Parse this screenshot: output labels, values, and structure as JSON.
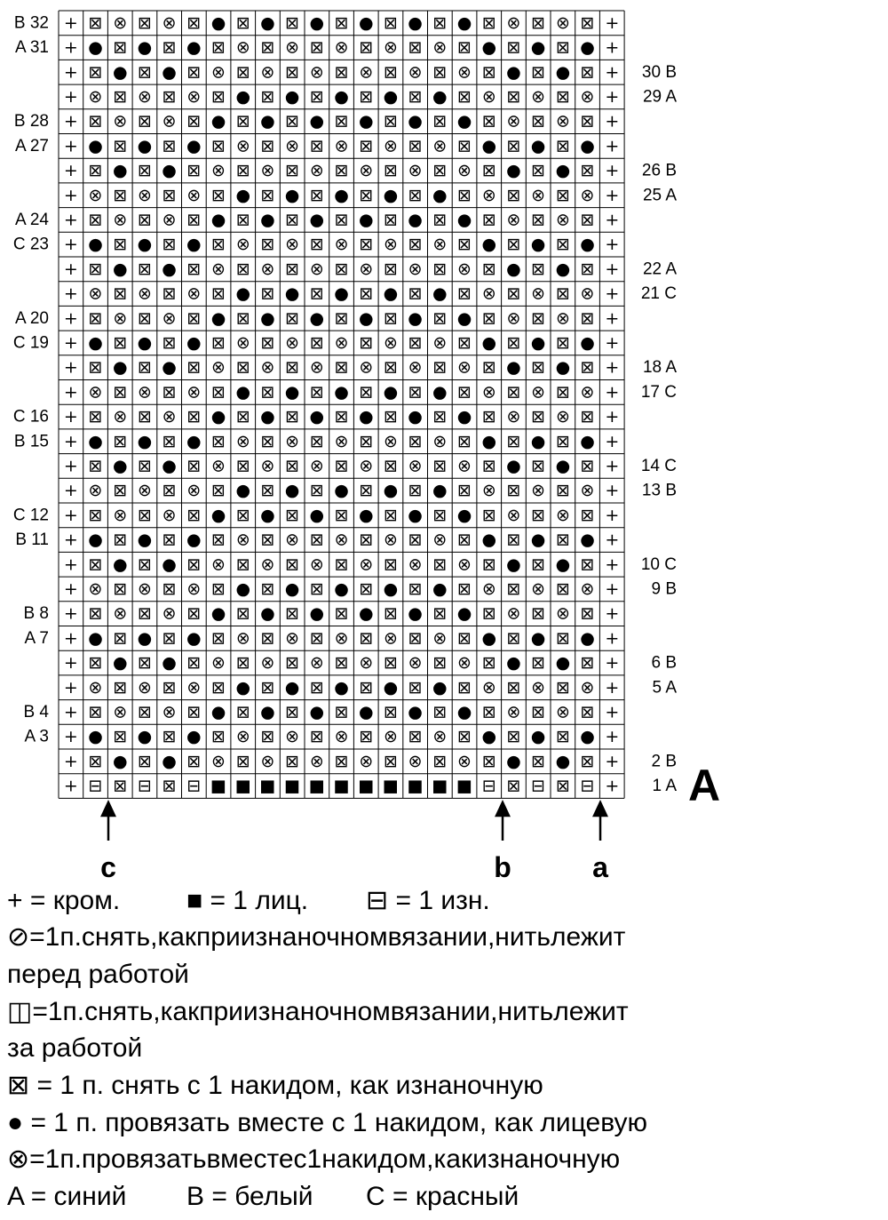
{
  "chart_label": "A",
  "rows": [
    {
      "label": "B 32",
      "cells": "+⊠⊗⊠⊗⊠●⊠●⊠●⊠●⊠●⊠●⊠⊗⊠⊗⊠+"
    },
    {
      "label": "A 31",
      "cells": "+●⊠●⊠●⊠⊗⊠⊗⊠⊗⊠⊗⊠⊗⊠●⊠●⊠●+"
    },
    {
      "label": "30 B",
      "cells": "+⊠●⊠●⊠⊗⊠⊗⊠⊗⊠⊗⊠⊗⊠⊗⊠●⊠●⊠+"
    },
    {
      "label": "29 A",
      "cells": "+⊗⊠⊗⊠⊗⊠●⊠●⊠●⊠●⊠●⊠⊗⊠⊗⊠⊗+"
    },
    {
      "label": "B 28",
      "cells": "+⊠⊗⊠⊗⊠●⊠●⊠●⊠●⊠●⊠●⊠⊗⊠⊗⊠+"
    },
    {
      "label": "A 27",
      "cells": "+●⊠●⊠●⊠⊗⊠⊗⊠⊗⊠⊗⊠⊗⊠●⊠●⊠●+"
    },
    {
      "label": "26 B",
      "cells": "+⊠●⊠●⊠⊗⊠⊗⊠⊗⊠⊗⊠⊗⊠⊗⊠●⊠●⊠+"
    },
    {
      "label": "25 A",
      "cells": "+⊗⊠⊗⊠⊗⊠●⊠●⊠●⊠●⊠●⊠⊗⊠⊗⊠⊗+"
    },
    {
      "label": "A 24",
      "cells": "+⊠⊗⊠⊗⊠●⊠●⊠●⊠●⊠●⊠●⊠⊗⊠⊗⊠+"
    },
    {
      "label": "C 23",
      "cells": "+●⊠●⊠●⊠⊗⊠⊗⊠⊗⊠⊗⊠⊗⊠●⊠●⊠●+"
    },
    {
      "label": "22 A",
      "cells": "+⊠●⊠●⊠⊗⊠⊗⊠⊗⊠⊗⊠⊗⊠⊗⊠●⊠●⊠+"
    },
    {
      "label": "21 C",
      "cells": "+⊗⊠⊗⊠⊗⊠●⊠●⊠●⊠●⊠●⊠⊗⊠⊗⊠⊗+"
    },
    {
      "label": "A 20",
      "cells": "+⊠⊗⊠⊗⊠●⊠●⊠●⊠●⊠●⊠●⊠⊗⊠⊗⊠+"
    },
    {
      "label": "C 19",
      "cells": "+●⊠●⊠●⊠⊗⊠⊗⊠⊗⊠⊗⊠⊗⊠●⊠●⊠●+"
    },
    {
      "label": "18 A",
      "cells": "+⊠●⊠●⊠⊗⊠⊗⊠⊗⊠⊗⊠⊗⊠⊗⊠●⊠●⊠+"
    },
    {
      "label": "17 C",
      "cells": "+⊗⊠⊗⊠⊗⊠●⊠●⊠●⊠●⊠●⊠⊗⊠⊗⊠⊗+"
    },
    {
      "label": "C 16",
      "cells": "+⊠⊗⊠⊗⊠●⊠●⊠●⊠●⊠●⊠●⊠⊗⊠⊗⊠+"
    },
    {
      "label": "B 15",
      "cells": "+●⊠●⊠●⊠⊗⊠⊗⊠⊗⊠⊗⊠⊗⊠●⊠●⊠●+"
    },
    {
      "label": "14 C",
      "cells": "+⊠●⊠●⊠⊗⊠⊗⊠⊗⊠⊗⊠⊗⊠⊗⊠●⊠●⊠+"
    },
    {
      "label": "13 B",
      "cells": "+⊗⊠⊗⊠⊗⊠●⊠●⊠●⊠●⊠●⊠⊗⊠⊗⊠⊗+"
    },
    {
      "label": "C 12",
      "cells": "+⊠⊗⊠⊗⊠●⊠●⊠●⊠●⊠●⊠●⊠⊗⊠⊗⊠+"
    },
    {
      "label": "B 11",
      "cells": "+●⊠●⊠●⊠⊗⊠⊗⊠⊗⊠⊗⊠⊗⊠●⊠●⊠●+"
    },
    {
      "label": "10 C",
      "cells": "+⊠●⊠●⊠⊗⊠⊗⊠⊗⊠⊗⊠⊗⊠⊗⊠●⊠●⊠+"
    },
    {
      "label": "9 B",
      "cells": "+⊗⊠⊗⊠⊗⊠●⊠●⊠●⊠●⊠●⊠⊗⊠⊗⊠⊗+"
    },
    {
      "label": "B 8",
      "cells": "+⊠⊗⊠⊗⊠●⊠●⊠●⊠●⊠●⊠●⊠⊗⊠⊗⊠+"
    },
    {
      "label": "A 7",
      "cells": "+●⊠●⊠●⊠⊗⊠⊗⊠⊗⊠⊗⊠⊗⊠●⊠●⊠●+"
    },
    {
      "label": "6 B",
      "cells": "+⊠●⊠●⊠⊗⊠⊗⊠⊗⊠⊗⊠⊗⊠⊗⊠●⊠●⊠+"
    },
    {
      "label": "5 A",
      "cells": "+⊗⊠⊗⊠⊗⊠●⊠●⊠●⊠●⊠●⊠⊗⊠⊗⊠⊗+"
    },
    {
      "label": "B 4",
      "cells": "+⊠⊗⊠⊗⊠●⊠●⊠●⊠●⊠●⊠●⊠⊗⊠⊗⊠+"
    },
    {
      "label": "A 3",
      "cells": "+●⊠●⊠●⊠⊗⊠⊗⊠⊗⊠⊗⊠⊗⊠●⊠●⊠●+"
    },
    {
      "label": "2 B",
      "cells": "+⊠●⊠●⊠⊗⊠⊗⊠⊗⊠⊗⊠⊗⊠⊗⊠●⊠●⊠+"
    },
    {
      "label": "1 A",
      "cells": "+⊟⊠⊟⊠⊟■■■■■■■■■■■⊟⊠⊟⊠⊟+"
    }
  ],
  "markers": [
    "c",
    "b",
    "a"
  ],
  "legend": [
    [
      "+ = кром.",
      "■ = 1 лиц.",
      "⊟ = 1 изн."
    ],
    [
      "⊘=1п.снять,какприизнаночномвязании,нитьлежит"
    ],
    [
      "перед работой"
    ],
    [
      "◫=1п.снять,какприизнаночномвязании,нитьлежит"
    ],
    [
      "за работой"
    ],
    [
      "⊠ = 1 п. снять с 1 накидом, как изнаночную"
    ],
    [
      "● = 1 п. провязать вместе с 1 накидом, как лицевую"
    ],
    [
      "⊗=1п.провязатьвместес1накидом,какизнаночную"
    ],
    [
      "A = синий",
      "B = белый",
      "C = красный"
    ]
  ]
}
